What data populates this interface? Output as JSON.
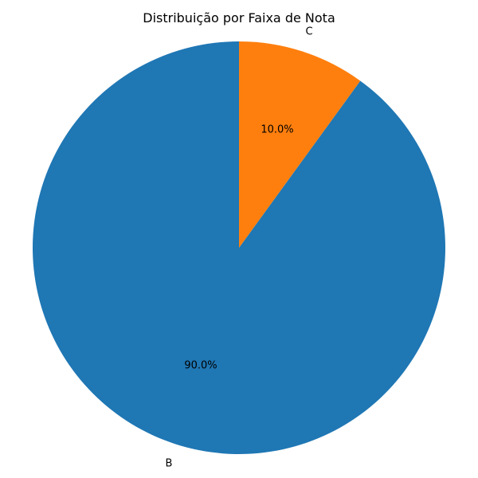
{
  "chart_data": {
    "type": "pie",
    "title": "Distribuição por Faixa de Nota",
    "categories": [
      "B",
      "C"
    ],
    "values": [
      90,
      10
    ],
    "percent_labels": [
      "90.0%",
      "10.0%"
    ],
    "colors": [
      "#1f77b4",
      "#ff7f0e"
    ],
    "start_angle_deg": 90,
    "direction": "counterclockwise",
    "legend": "none"
  }
}
